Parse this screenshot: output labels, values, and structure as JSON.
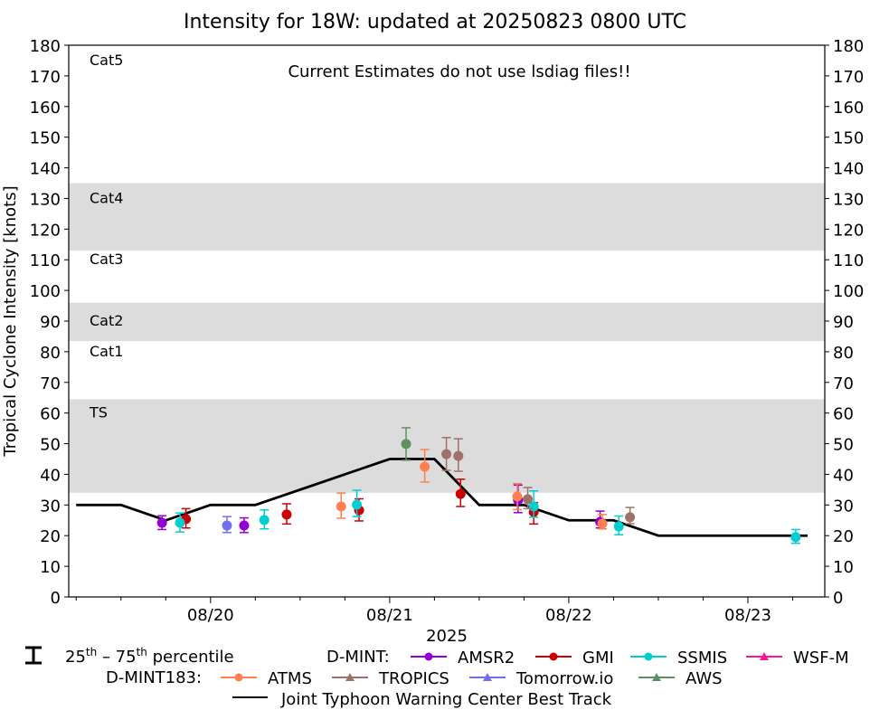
{
  "chart_data": {
    "type": "scatter",
    "title": "Intensity for 18W: updated at 20250823 0800 UTC",
    "annotation": "Current Estimates do not use lsdiag files!!",
    "xlabel": "2025",
    "ylabel": "Tropical Cyclone Intensity [knots]",
    "x_units": "hours since 2025-08-19 00Z",
    "xlim": [
      5.0,
      106.3
    ],
    "ylim": [
      0,
      180
    ],
    "x_ticks": [
      {
        "hours": 24,
        "label": "08/20"
      },
      {
        "hours": 48,
        "label": "08/21"
      },
      {
        "hours": 72,
        "label": "08/22"
      },
      {
        "hours": 96,
        "label": "08/23"
      }
    ],
    "x_minor_tick_step_hours": 6,
    "y_ticks": [
      0,
      10,
      20,
      30,
      40,
      50,
      60,
      70,
      80,
      90,
      100,
      110,
      120,
      130,
      140,
      150,
      160,
      170,
      180
    ],
    "grid": false,
    "category_bands": [
      {
        "label": "TS",
        "low": 34,
        "high": 64.5,
        "shaded": true,
        "label_y": 60
      },
      {
        "label": "Cat1",
        "low": 64.5,
        "high": 83.5,
        "shaded": false,
        "label_y": 80
      },
      {
        "label": "Cat2",
        "low": 83.5,
        "high": 96,
        "shaded": true,
        "label_y": 90
      },
      {
        "label": "Cat3",
        "low": 96,
        "high": 113,
        "shaded": false,
        "label_y": 110
      },
      {
        "label": "Cat4",
        "low": 113,
        "high": 135,
        "shaded": true,
        "label_y": 130
      },
      {
        "label": "Cat5",
        "low": 135,
        "high": 180,
        "shaded": false,
        "label_y": 175
      }
    ],
    "band_color": "#dcdcdc",
    "series": [
      {
        "name": "AMSR2",
        "group": "D-MINT",
        "marker": "circle",
        "color": "#9400d3",
        "points": [
          {
            "x": 17.5,
            "y": 24.2,
            "lo": 22.0,
            "hi": 26.5
          },
          {
            "x": 28.5,
            "y": 23.3,
            "lo": 21.0,
            "hi": 25.8
          },
          {
            "x": 65.2,
            "y": 31.6,
            "lo": 27.5,
            "hi": 36.5
          },
          {
            "x": 76.2,
            "y": 24.5,
            "lo": 22.5,
            "hi": 28.0
          }
        ]
      },
      {
        "name": "GMI",
        "group": "D-MINT",
        "marker": "circle",
        "color": "#cc0000",
        "points": [
          {
            "x": 20.7,
            "y": 25.4,
            "lo": 22.5,
            "hi": 28.8
          },
          {
            "x": 34.2,
            "y": 26.9,
            "lo": 23.8,
            "hi": 30.4
          },
          {
            "x": 43.9,
            "y": 28.3,
            "lo": 24.8,
            "hi": 32.0
          },
          {
            "x": 57.5,
            "y": 33.6,
            "lo": 29.5,
            "hi": 38.4
          },
          {
            "x": 67.3,
            "y": 27.7,
            "lo": 23.8,
            "hi": 30.8
          }
        ]
      },
      {
        "name": "SSMIS",
        "group": "D-MINT",
        "marker": "circle",
        "color": "#00cfd1",
        "points": [
          {
            "x": 19.9,
            "y": 24.2,
            "lo": 21.2,
            "hi": 27.4
          },
          {
            "x": 31.2,
            "y": 25.1,
            "lo": 22.2,
            "hi": 28.4
          },
          {
            "x": 43.6,
            "y": 30.1,
            "lo": 26.2,
            "hi": 34.8
          },
          {
            "x": 67.3,
            "y": 29.5,
            "lo": 26.0,
            "hi": 34.6
          },
          {
            "x": 78.7,
            "y": 23.0,
            "lo": 20.3,
            "hi": 26.4
          },
          {
            "x": 102.4,
            "y": 19.5,
            "lo": 17.5,
            "hi": 22.0
          }
        ]
      },
      {
        "name": "WSF-M",
        "group": "D-MINT",
        "marker": "triangle",
        "color": "#ff1493",
        "points": []
      },
      {
        "name": "ATMS",
        "group": "D-MINT183",
        "marker": "circle",
        "color": "#ff7f50",
        "points": [
          {
            "x": 41.5,
            "y": 29.5,
            "lo": 25.7,
            "hi": 33.9
          },
          {
            "x": 52.7,
            "y": 42.5,
            "lo": 37.5,
            "hi": 48.1
          },
          {
            "x": 65.1,
            "y": 32.8,
            "lo": 28.5,
            "hi": 37.0
          },
          {
            "x": 76.5,
            "y": 23.9,
            "lo": 22.2,
            "hi": 26.9
          }
        ]
      },
      {
        "name": "TROPICS",
        "group": "D-MINT183",
        "marker": "triangle",
        "color": "#a0706a",
        "points": [
          {
            "x": 55.6,
            "y": 46.6,
            "lo": 41.3,
            "hi": 52.0
          },
          {
            "x": 57.2,
            "y": 46.0,
            "lo": 41.0,
            "hi": 51.6
          },
          {
            "x": 66.5,
            "y": 31.9,
            "lo": 28.8,
            "hi": 35.7
          },
          {
            "x": 80.2,
            "y": 26.0,
            "lo": 23.9,
            "hi": 29.2
          }
        ]
      },
      {
        "name": "Tomorrow.io",
        "group": "D-MINT183",
        "marker": "triangle",
        "color": "#7070e8",
        "points": [
          {
            "x": 26.2,
            "y": 23.3,
            "lo": 21.0,
            "hi": 26.2
          }
        ]
      },
      {
        "name": "AWS",
        "group": "D-MINT183",
        "marker": "triangle",
        "color": "#5f9060",
        "points": [
          {
            "x": 50.2,
            "y": 49.9,
            "lo": 44.6,
            "hi": 55.2
          }
        ]
      }
    ],
    "best_track": {
      "name": "Joint Typhoon Warning Center Best Track",
      "color": "#000000",
      "points": [
        {
          "x": 6,
          "y": 30
        },
        {
          "x": 12,
          "y": 30
        },
        {
          "x": 18,
          "y": 25
        },
        {
          "x": 24,
          "y": 30
        },
        {
          "x": 30,
          "y": 30
        },
        {
          "x": 48,
          "y": 45
        },
        {
          "x": 54,
          "y": 45
        },
        {
          "x": 60,
          "y": 30
        },
        {
          "x": 66,
          "y": 30
        },
        {
          "x": 72,
          "y": 25
        },
        {
          "x": 78,
          "y": 25
        },
        {
          "x": 84,
          "y": 20
        },
        {
          "x": 104,
          "y": 20
        }
      ]
    },
    "legend": {
      "placement": "bottom",
      "percentile_label_base1": "25",
      "percentile_label_sup1": "th",
      "percentile_label_dash": " – ",
      "percentile_label_base2": "75",
      "percentile_label_sup2": "th",
      "percentile_label_tail": " percentile",
      "dmint_label": "D-MINT:",
      "dmint183_label": "D-MINT183:"
    }
  }
}
